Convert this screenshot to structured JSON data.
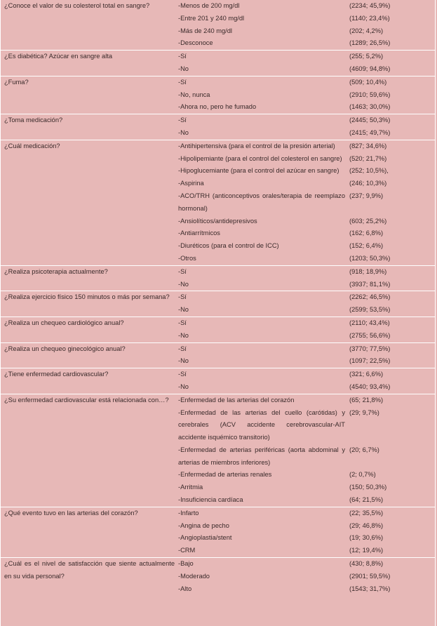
{
  "table": {
    "rows": [
      {
        "question": "¿Conoce el valor de su colesterol total en sangre?",
        "options": [
          {
            "label": "-Menos de 200 mg/dl",
            "value": "(2234; 45,9%)"
          },
          {
            "label": "-Entre 201 y 240 mg/dl",
            "value": "(1140; 23,4%)"
          },
          {
            "label": "-Más de 240 mg/dl",
            "value": "(202; 4,2%)"
          },
          {
            "label": "-Desconoce",
            "value": "(1289; 26,5%)"
          }
        ]
      },
      {
        "question": "¿Es diabética? Azúcar en sangre alta",
        "options": [
          {
            "label": "-Sí",
            "value": "(255; 5,2%)"
          },
          {
            "label": "-No",
            "value": "(4609; 94,8%)"
          }
        ]
      },
      {
        "question": "¿Fuma?",
        "options": [
          {
            "label": "-Sí",
            "value": "(509; 10,4%)"
          },
          {
            "label": "-No, nunca",
            "value": "(2910; 59,6%)"
          },
          {
            "label": "-Ahora no, pero he fumado",
            "value": "(1463; 30,0%)"
          }
        ]
      },
      {
        "question": "¿Toma medicación?",
        "options": [
          {
            "label": "-Sí",
            "value": "(2445; 50,3%)"
          },
          {
            "label": "-No",
            "value": "(2415; 49,7%)"
          }
        ]
      },
      {
        "question": "¿Cuál medicación?",
        "options": [
          {
            "label": "-Antihipertensiva (para el control de la presión arterial)",
            "value": "(827; 34,6%)"
          },
          {
            "label": "-Hipolipemiante (para el control del colesterol en sangre)",
            "value": "(520; 21,7%)"
          },
          {
            "label": "-Hipoglucemiante (para el control del azúcar en sangre)",
            "value": "(252; 10,5%),"
          },
          {
            "label": "-Aspirina",
            "value": "(246; 10,3%)"
          },
          {
            "label": "-ACO/TRH (anticonceptivos orales/terapia de reemplazo hormonal)",
            "value": "(237; 9,9%)"
          },
          {
            "label": "-Ansiolíticos/antidepresivos",
            "value": "(603; 25,2%)"
          },
          {
            "label": "-Antiarrítmicos",
            "value": "(162; 6,8%)"
          },
          {
            "label": "-Diuréticos (para el control de ICC)",
            "value": "(152; 6,4%)"
          },
          {
            "label": "-Otros",
            "value": "(1203; 50,3%)"
          }
        ]
      },
      {
        "question": "¿Realiza psicoterapia actualmente?",
        "options": [
          {
            "label": "-Sí",
            "value": "(918; 18,9%)"
          },
          {
            "label": "-No",
            "value": "(3937; 81,1%)"
          }
        ]
      },
      {
        "question": "¿Realiza ejercicio físico 150 minutos o más por semana?",
        "options": [
          {
            "label": "-Sí",
            "value": "(2262; 46,5%)"
          },
          {
            "label": "-No",
            "value": "(2599; 53,5%)"
          }
        ]
      },
      {
        "question": "¿Realiza un chequeo cardiológico anual?",
        "options": [
          {
            "label": "-Sí",
            "value": "(2110; 43,4%)"
          },
          {
            "label": "-No",
            "value": "(2755; 56,6%)"
          }
        ]
      },
      {
        "question": "¿Realiza un chequeo ginecológico anual?",
        "options": [
          {
            "label": "-Sí",
            "value": "(3770; 77,5%)"
          },
          {
            "label": "-No",
            "value": "(1097; 22,5%)"
          }
        ]
      },
      {
        "question": "¿Tiene enfermedad cardiovascular?",
        "options": [
          {
            "label": "-Sí",
            "value": "(321; 6,6%)"
          },
          {
            "label": "-No",
            "value": "(4540; 93,4%)"
          }
        ]
      },
      {
        "question": "¿Su enfermedad cardiovascular está relacionada con…?",
        "options": [
          {
            "label": "-Enfermedad de las arterias del corazón",
            "value": "(65; 21,8%)"
          },
          {
            "label": "-Enfermedad de las arterias del cuello (carótidas) y cerebrales (ACV accidente cerebrovascular-AIT accidente isquémico transitorio)",
            "value": "(29; 9,7%)"
          },
          {
            "label": "-Enfermedad de arterias periféricas (aorta abdominal y arterias de miembros inferiores)",
            "value": "(20; 6,7%)"
          },
          {
            "label": "-Enfermedad de arterias renales",
            "value": "(2; 0,7%)"
          },
          {
            "label": "-Arritmia",
            "value": "(150; 50,3%)"
          },
          {
            "label": "-Insuficiencia cardíaca",
            "value": "(64; 21,5%)"
          }
        ]
      },
      {
        "question": "¿Qué evento tuvo en las arterias del corazón?",
        "options": [
          {
            "label": "-Infarto",
            "value": "(22; 35,5%)"
          },
          {
            "label": "-Angina de pecho",
            "value": "(29; 46,8%)"
          },
          {
            "label": "-Angioplastia/stent",
            "value": "(19; 30,6%)"
          },
          {
            "label": "-CRM",
            "value": "(12; 19,4%)"
          }
        ]
      },
      {
        "question": "¿Cuál es el nivel de satisfacción que siente actualmente en su vida personal?",
        "options": [
          {
            "label": "-Bajo",
            "value": "(430; 8,8%)"
          },
          {
            "label": "-Moderado",
            "value": "(2901; 59,5%)"
          },
          {
            "label": "-Alto",
            "value": "(1543; 31,7%)"
          }
        ]
      }
    ]
  }
}
